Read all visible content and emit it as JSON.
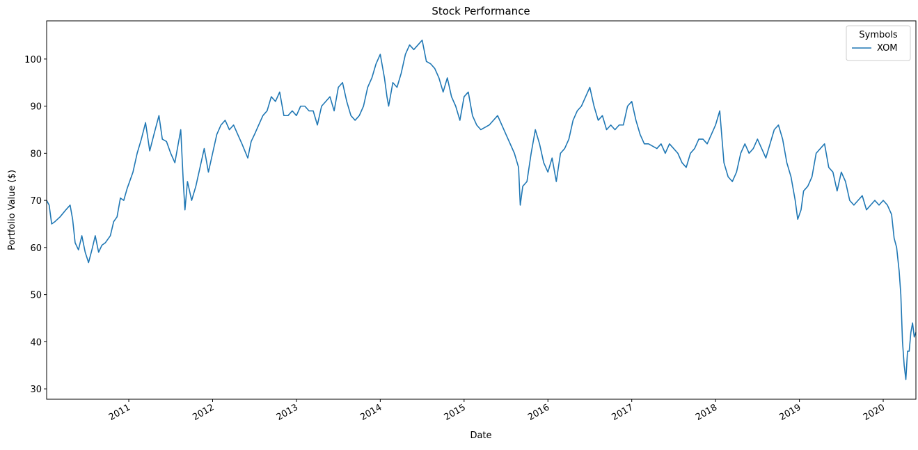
{
  "chart_data": {
    "type": "line",
    "title": "Stock Performance",
    "x_label": "Date",
    "y_label": "Portfolio Value ($)",
    "legend_title": "Symbols",
    "legend_position": "upper right",
    "grid": false,
    "xlim": [
      2010.02,
      2020.39
    ],
    "xticks": [
      2011,
      2012,
      2013,
      2014,
      2015,
      2016,
      2017,
      2018,
      2019,
      2020
    ],
    "ylim": [
      27.8,
      108.1
    ],
    "yticks": [
      30,
      40,
      50,
      60,
      70,
      80,
      90,
      100
    ],
    "x": [
      2010.02,
      2010.05,
      2010.08,
      2010.12,
      2010.18,
      2010.25,
      2010.3,
      2010.33,
      2010.36,
      2010.4,
      2010.44,
      2010.48,
      2010.52,
      2010.56,
      2010.6,
      2010.64,
      2010.68,
      2010.72,
      2010.78,
      2010.82,
      2010.86,
      2010.9,
      2010.94,
      2010.98,
      2011.05,
      2011.1,
      2011.15,
      2011.2,
      2011.25,
      2011.3,
      2011.33,
      2011.36,
      2011.4,
      2011.45,
      2011.5,
      2011.55,
      2011.58,
      2011.62,
      2011.65,
      2011.67,
      2011.7,
      2011.75,
      2011.8,
      2011.85,
      2011.9,
      2011.95,
      2012.0,
      2012.05,
      2012.1,
      2012.15,
      2012.2,
      2012.25,
      2012.3,
      2012.35,
      2012.42,
      2012.46,
      2012.5,
      2012.55,
      2012.6,
      2012.65,
      2012.7,
      2012.75,
      2012.8,
      2012.85,
      2012.9,
      2012.95,
      2013.0,
      2013.05,
      2013.1,
      2013.15,
      2013.2,
      2013.25,
      2013.3,
      2013.35,
      2013.4,
      2013.45,
      2013.5,
      2013.55,
      2013.6,
      2013.65,
      2013.7,
      2013.75,
      2013.8,
      2013.85,
      2013.9,
      2013.95,
      2014.0,
      2014.05,
      2014.08,
      2014.1,
      2014.15,
      2014.2,
      2014.25,
      2014.3,
      2014.35,
      2014.4,
      2014.45,
      2014.5,
      2014.55,
      2014.6,
      2014.65,
      2014.7,
      2014.75,
      2014.8,
      2014.85,
      2014.9,
      2014.95,
      2015.0,
      2015.05,
      2015.1,
      2015.15,
      2015.2,
      2015.3,
      2015.4,
      2015.45,
      2015.5,
      2015.55,
      2015.6,
      2015.65,
      2015.67,
      2015.7,
      2015.75,
      2015.8,
      2015.85,
      2015.9,
      2015.95,
      2016.0,
      2016.05,
      2016.1,
      2016.15,
      2016.2,
      2016.25,
      2016.3,
      2016.35,
      2016.4,
      2016.45,
      2016.5,
      2016.55,
      2016.6,
      2016.65,
      2016.7,
      2016.75,
      2016.8,
      2016.85,
      2016.9,
      2016.95,
      2017.0,
      2017.05,
      2017.1,
      2017.15,
      2017.2,
      2017.3,
      2017.35,
      2017.4,
      2017.45,
      2017.5,
      2017.55,
      2017.6,
      2017.65,
      2017.7,
      2017.75,
      2017.8,
      2017.85,
      2017.9,
      2017.95,
      2018.0,
      2018.05,
      2018.1,
      2018.15,
      2018.2,
      2018.25,
      2018.3,
      2018.35,
      2018.4,
      2018.45,
      2018.5,
      2018.55,
      2018.6,
      2018.65,
      2018.7,
      2018.75,
      2018.8,
      2018.85,
      2018.9,
      2018.95,
      2018.98,
      2019.02,
      2019.05,
      2019.1,
      2019.15,
      2019.2,
      2019.25,
      2019.3,
      2019.35,
      2019.4,
      2019.45,
      2019.5,
      2019.55,
      2019.6,
      2019.65,
      2019.7,
      2019.75,
      2019.8,
      2019.85,
      2019.9,
      2019.95,
      2020.0,
      2020.05,
      2020.1,
      2020.13,
      2020.16,
      2020.19,
      2020.21,
      2020.23,
      2020.25,
      2020.27,
      2020.29,
      2020.31,
      2020.33,
      2020.35,
      2020.37,
      2020.39
    ],
    "series": [
      {
        "name": "XOM",
        "color": "#1f77b4",
        "values": [
          70,
          69,
          65,
          65.5,
          66.5,
          68,
          69,
          66,
          61,
          59.5,
          62.5,
          59,
          56.8,
          59.5,
          62.5,
          59,
          60.5,
          61,
          62.5,
          65.5,
          66.5,
          70.5,
          70,
          72.5,
          76,
          80,
          83,
          86.5,
          80.5,
          84,
          86,
          88,
          83,
          82.5,
          80,
          78,
          81,
          85,
          74,
          68,
          74,
          70,
          73,
          77,
          81,
          76,
          80,
          84,
          86,
          87,
          85,
          86,
          84,
          82,
          79,
          82.5,
          84,
          86,
          88,
          89,
          92,
          91,
          93,
          88,
          88,
          89,
          88,
          90,
          90,
          89,
          89,
          86,
          90,
          91,
          92,
          89,
          94,
          95,
          91,
          88,
          87,
          88,
          90,
          94,
          96,
          99,
          101,
          96,
          92,
          90,
          95,
          94,
          97,
          101,
          103,
          102,
          103,
          104,
          99.5,
          99,
          98,
          96,
          93,
          96,
          92,
          90,
          87,
          92,
          93,
          88,
          86,
          85,
          86,
          88,
          86,
          84,
          82,
          80,
          77,
          69,
          73,
          74,
          80,
          85,
          82,
          78,
          76,
          79,
          74,
          80,
          81,
          83,
          87,
          89,
          90,
          92,
          94,
          90,
          87,
          88,
          85,
          86,
          85,
          86,
          86,
          90,
          91,
          87,
          84,
          82,
          82,
          81,
          82,
          80,
          82,
          81,
          80,
          78,
          77,
          80,
          81,
          83,
          83,
          82,
          84,
          86,
          89,
          78,
          75,
          74,
          76,
          80,
          82,
          80,
          81,
          83,
          81,
          79,
          82,
          85,
          86,
          83,
          78,
          75,
          70,
          66,
          68,
          72,
          73,
          75,
          80,
          81,
          82,
          77,
          76,
          72,
          76,
          74,
          70,
          69,
          70,
          71,
          68,
          69,
          70,
          69,
          70,
          69,
          67,
          62,
          60,
          55,
          50,
          40,
          35,
          32,
          38,
          38,
          42,
          44,
          41,
          42
        ]
      }
    ]
  }
}
